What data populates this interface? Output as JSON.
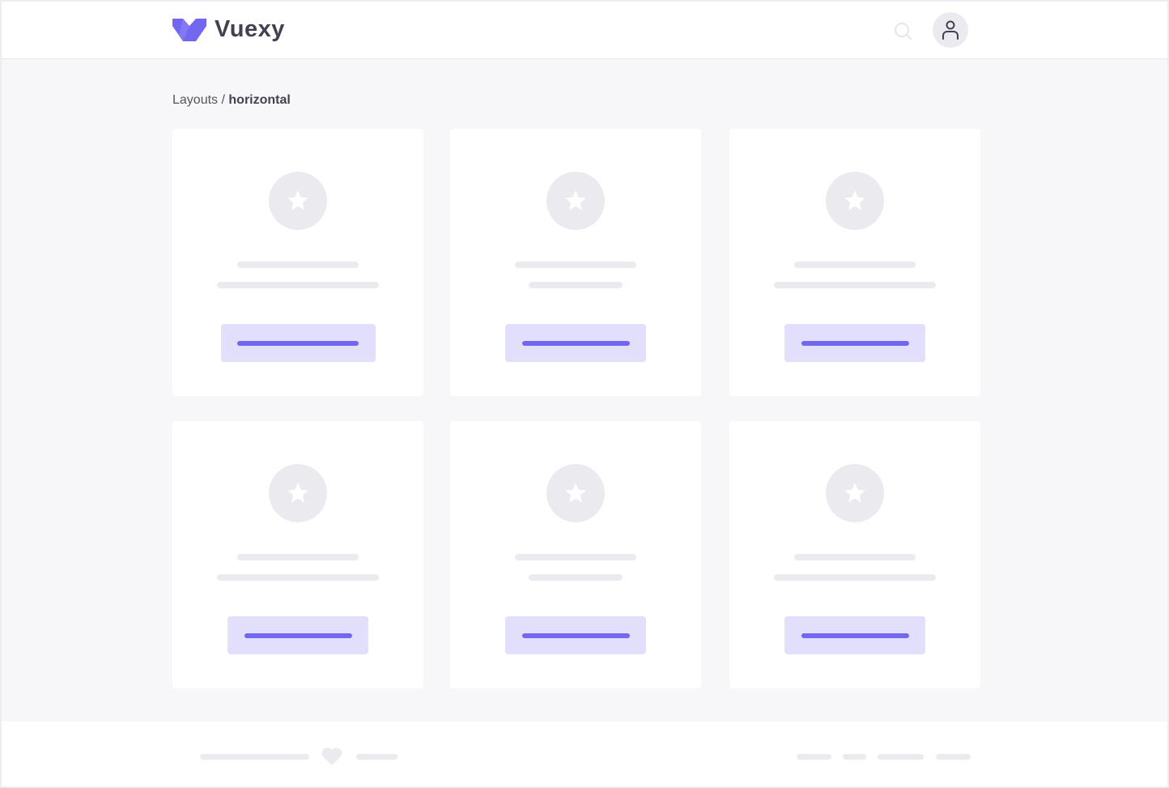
{
  "header": {
    "brand": "Vuexy",
    "icons": [
      "logo",
      "search-icon",
      "user-icon"
    ]
  },
  "breadcrumb": {
    "parent": "Layouts",
    "separator": " / ",
    "current": "horizontal"
  },
  "colors": {
    "accent": "#7367f0",
    "accent_light": "#e2dffc",
    "placeholder": "#ebebef",
    "background": "#f7f7f9"
  },
  "cards": [
    {
      "icon": "star-icon"
    },
    {
      "icon": "star-icon"
    },
    {
      "icon": "star-icon"
    },
    {
      "icon": "star-icon"
    },
    {
      "icon": "star-icon"
    },
    {
      "icon": "star-icon"
    }
  ],
  "footer": {
    "icon": "heart-icon"
  }
}
